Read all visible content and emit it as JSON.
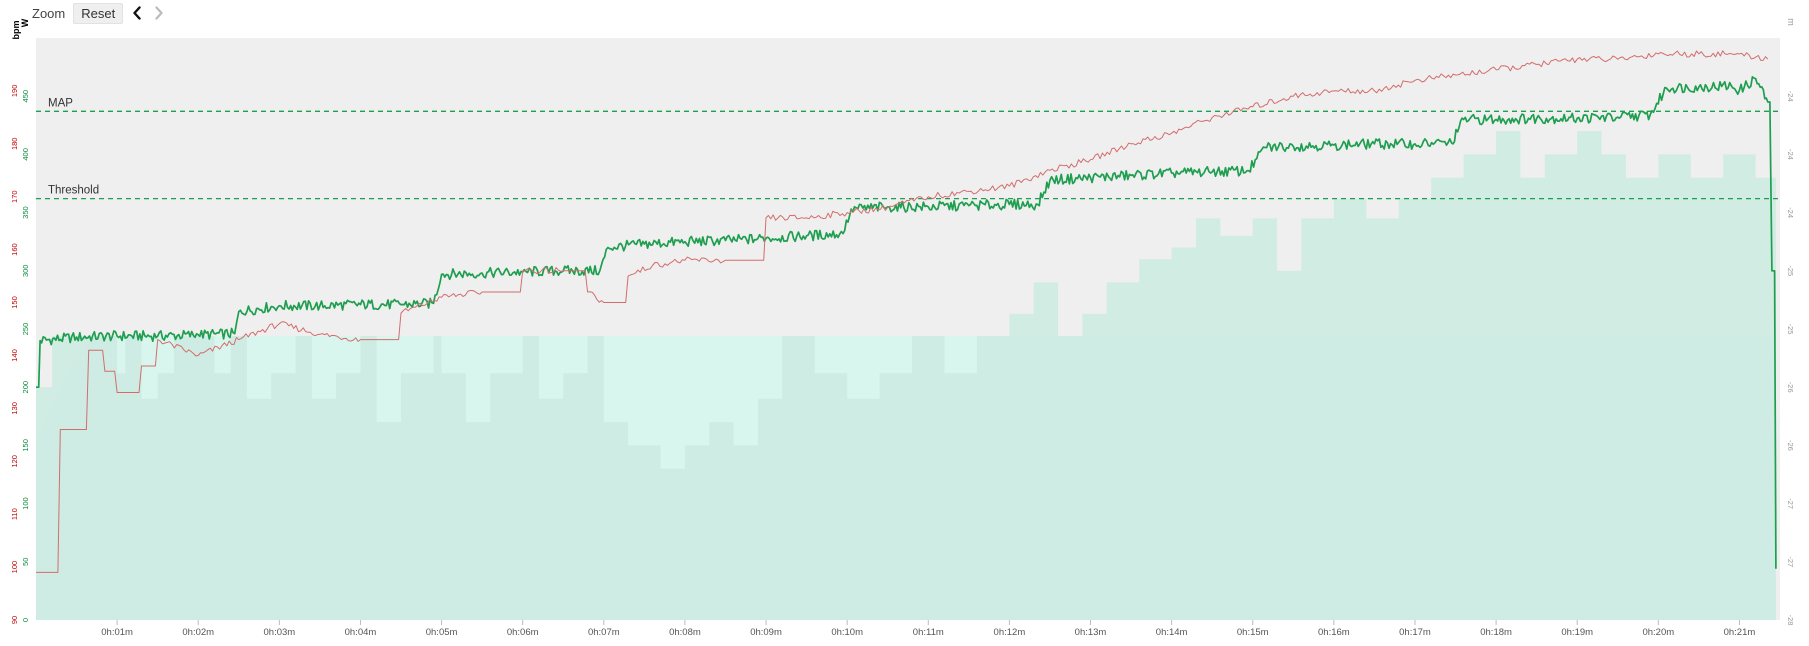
{
  "toolbar": {
    "zoom_label": "Zoom",
    "reset_label": "Reset",
    "prev_icon": "chevron-left-icon",
    "next_icon": "chevron-right-icon"
  },
  "colors": {
    "power": "#1e9e4f",
    "heart_rate": "#d26d6d",
    "hr_axis": "#c00000",
    "power_axis": "#0a8a3a",
    "cadence_fill": "#cdebe1",
    "speed_fill": "#d8f6ee",
    "plot_bg": "#efefef",
    "reference_line": "#1e9e4f"
  },
  "chart_data": {
    "type": "line",
    "x_unit": "minutes",
    "xlim": [
      0,
      21.5
    ],
    "x_ticks": [
      {
        "x": 1,
        "label": "0h:01m"
      },
      {
        "x": 2,
        "label": "0h:02m"
      },
      {
        "x": 3,
        "label": "0h:03m"
      },
      {
        "x": 4,
        "label": "0h:04m"
      },
      {
        "x": 5,
        "label": "0h:05m"
      },
      {
        "x": 6,
        "label": "0h:06m"
      },
      {
        "x": 7,
        "label": "0h:07m"
      },
      {
        "x": 8,
        "label": "0h:08m"
      },
      {
        "x": 9,
        "label": "0h:09m"
      },
      {
        "x": 10,
        "label": "0h:10m"
      },
      {
        "x": 11,
        "label": "0h:11m"
      },
      {
        "x": 12,
        "label": "0h:12m"
      },
      {
        "x": 13,
        "label": "0h:13m"
      },
      {
        "x": 14,
        "label": "0h:14m"
      },
      {
        "x": 15,
        "label": "0h:15m"
      },
      {
        "x": 16,
        "label": "0h:16m"
      },
      {
        "x": 17,
        "label": "0h:17m"
      },
      {
        "x": 18,
        "label": "0h:18m"
      },
      {
        "x": 19,
        "label": "0h:19m"
      },
      {
        "x": 20,
        "label": "0h:20m"
      },
      {
        "x": 21,
        "label": "0h:21m"
      }
    ],
    "axes": {
      "hr": {
        "title": "bpm",
        "lim": [
          90,
          200
        ],
        "ticks": [
          90,
          100,
          110,
          120,
          130,
          140,
          150,
          160,
          170,
          180,
          190
        ]
      },
      "power": {
        "title": "W",
        "lim": [
          0,
          500
        ],
        "ticks": [
          0,
          50,
          100,
          150,
          200,
          250,
          300,
          350,
          400,
          450
        ]
      },
      "right": {
        "title": "m",
        "lim": [
          -28,
          -23
        ],
        "ticks": [
          -28,
          -27.5,
          -27,
          -26.5,
          -26,
          -25.5,
          -25,
          -24.5,
          -24,
          -23.5
        ],
        "labels": [
          "-28",
          "-27",
          "-27",
          "-26",
          "-26",
          "-25",
          "-25",
          "-24",
          "-24",
          "-24"
        ]
      }
    },
    "reference_lines": [
      {
        "label": "MAP",
        "power": 437
      },
      {
        "label": "Threshold",
        "power": 362
      }
    ],
    "series": [
      {
        "key": "power",
        "axis": "power",
        "style": "line",
        "points": [
          [
            0,
            200
          ],
          [
            0.05,
            240
          ],
          [
            0.5,
            243
          ],
          [
            1,
            244
          ],
          [
            1.5,
            244
          ],
          [
            2,
            245
          ],
          [
            2.45,
            246
          ],
          [
            2.5,
            265
          ],
          [
            3,
            270
          ],
          [
            3.5,
            270
          ],
          [
            4,
            271
          ],
          [
            4.5,
            271
          ],
          [
            4.9,
            272
          ],
          [
            5.0,
            297
          ],
          [
            5.5,
            298
          ],
          [
            6,
            299
          ],
          [
            6.5,
            300
          ],
          [
            6.95,
            300
          ],
          [
            7.05,
            320
          ],
          [
            7.5,
            323
          ],
          [
            8,
            325
          ],
          [
            8.5,
            326
          ],
          [
            9,
            328
          ],
          [
            9.5,
            330
          ],
          [
            9.95,
            332
          ],
          [
            10.05,
            353
          ],
          [
            10.5,
            355
          ],
          [
            11,
            355
          ],
          [
            11.5,
            356
          ],
          [
            12,
            357
          ],
          [
            12.35,
            357
          ],
          [
            12.5,
            378
          ],
          [
            13,
            380
          ],
          [
            13.5,
            382
          ],
          [
            14,
            384
          ],
          [
            14.5,
            385
          ],
          [
            14.95,
            386
          ],
          [
            15.15,
            406
          ],
          [
            15.5,
            407
          ],
          [
            16,
            408
          ],
          [
            16.5,
            409
          ],
          [
            17,
            409
          ],
          [
            17.45,
            410
          ],
          [
            17.6,
            430
          ],
          [
            18,
            430
          ],
          [
            18.5,
            431
          ],
          [
            19,
            431
          ],
          [
            19.5,
            432
          ],
          [
            19.9,
            434
          ],
          [
            20.1,
            457
          ],
          [
            20.5,
            458
          ],
          [
            20.9,
            459
          ],
          [
            21.0,
            455
          ],
          [
            21.2,
            465
          ],
          [
            21.35,
            445
          ],
          [
            21.4,
            300
          ],
          [
            21.45,
            44
          ]
        ]
      },
      {
        "key": "heart_rate",
        "axis": "hr",
        "style": "line",
        "points": [
          [
            0,
            99
          ],
          [
            0.3,
            126
          ],
          [
            0.65,
            141
          ],
          [
            0.85,
            137
          ],
          [
            1.0,
            133
          ],
          [
            1.3,
            138
          ],
          [
            1.5,
            143
          ],
          [
            2.0,
            140
          ],
          [
            2.5,
            143
          ],
          [
            3.0,
            146
          ],
          [
            3.5,
            144
          ],
          [
            4.0,
            143
          ],
          [
            4.5,
            148
          ],
          [
            5.0,
            151
          ],
          [
            5.5,
            152
          ],
          [
            6.0,
            156
          ],
          [
            6.5,
            156
          ],
          [
            6.8,
            152
          ],
          [
            7.0,
            150
          ],
          [
            7.3,
            155
          ],
          [
            7.6,
            157
          ],
          [
            8.0,
            158
          ],
          [
            8.5,
            158
          ],
          [
            9.0,
            166
          ],
          [
            9.5,
            166
          ],
          [
            10.0,
            167
          ],
          [
            10.5,
            168
          ],
          [
            11.0,
            170
          ],
          [
            11.5,
            171
          ],
          [
            12.0,
            172
          ],
          [
            12.5,
            175
          ],
          [
            13.0,
            177
          ],
          [
            13.5,
            180
          ],
          [
            14.0,
            182
          ],
          [
            14.5,
            185
          ],
          [
            15.0,
            187
          ],
          [
            15.5,
            189
          ],
          [
            16.0,
            190
          ],
          [
            16.5,
            190
          ],
          [
            17.0,
            192
          ],
          [
            17.5,
            193
          ],
          [
            18.0,
            194
          ],
          [
            18.5,
            195
          ],
          [
            19.0,
            196
          ],
          [
            19.5,
            196
          ],
          [
            20.0,
            197
          ],
          [
            20.5,
            197
          ],
          [
            21.0,
            197
          ],
          [
            21.35,
            196
          ]
        ]
      },
      {
        "key": "cadence",
        "axis": "power",
        "style": "area-step",
        "points": [
          [
            0,
            200
          ],
          [
            0.2,
            244
          ],
          [
            0.8,
            244
          ],
          [
            1.0,
            212
          ],
          [
            1.1,
            244
          ],
          [
            1.3,
            190
          ],
          [
            1.5,
            212
          ],
          [
            1.7,
            244
          ],
          [
            2.2,
            212
          ],
          [
            2.4,
            244
          ],
          [
            2.6,
            190
          ],
          [
            2.9,
            212
          ],
          [
            3.2,
            244
          ],
          [
            3.4,
            190
          ],
          [
            3.7,
            212
          ],
          [
            4.0,
            244
          ],
          [
            4.2,
            170
          ],
          [
            4.5,
            212
          ],
          [
            4.9,
            244
          ],
          [
            5.0,
            212
          ],
          [
            5.3,
            170
          ],
          [
            5.6,
            212
          ],
          [
            6.0,
            244
          ],
          [
            6.2,
            190
          ],
          [
            6.5,
            212
          ],
          [
            6.8,
            244
          ],
          [
            7.0,
            170
          ],
          [
            7.3,
            150
          ],
          [
            7.7,
            130
          ],
          [
            8.0,
            150
          ],
          [
            8.3,
            170
          ],
          [
            8.6,
            150
          ],
          [
            8.9,
            190
          ],
          [
            9.2,
            244
          ],
          [
            9.6,
            212
          ],
          [
            10.0,
            190
          ],
          [
            10.4,
            212
          ],
          [
            10.8,
            244
          ],
          [
            11.2,
            212
          ],
          [
            11.6,
            244
          ],
          [
            12.0,
            263
          ],
          [
            12.3,
            290
          ],
          [
            12.6,
            244
          ],
          [
            12.9,
            263
          ],
          [
            13.2,
            290
          ],
          [
            13.6,
            310
          ],
          [
            14.0,
            320
          ],
          [
            14.3,
            345
          ],
          [
            14.6,
            330
          ],
          [
            15.0,
            345
          ],
          [
            15.3,
            300
          ],
          [
            15.6,
            345
          ],
          [
            16.0,
            362
          ],
          [
            16.4,
            345
          ],
          [
            16.8,
            362
          ],
          [
            17.2,
            380
          ],
          [
            17.6,
            400
          ],
          [
            18.0,
            420
          ],
          [
            18.3,
            380
          ],
          [
            18.6,
            400
          ],
          [
            19.0,
            420
          ],
          [
            19.3,
            400
          ],
          [
            19.6,
            380
          ],
          [
            20.0,
            400
          ],
          [
            20.4,
            380
          ],
          [
            20.8,
            400
          ],
          [
            21.2,
            380
          ],
          [
            21.45,
            0
          ]
        ]
      },
      {
        "key": "speed",
        "axis": "power",
        "style": "area",
        "points": [
          [
            0,
            150
          ],
          [
            0.1,
            170
          ],
          [
            0.35,
            208
          ],
          [
            0.6,
            235
          ],
          [
            0.8,
            244
          ],
          [
            21.45,
            244
          ]
        ]
      }
    ]
  }
}
